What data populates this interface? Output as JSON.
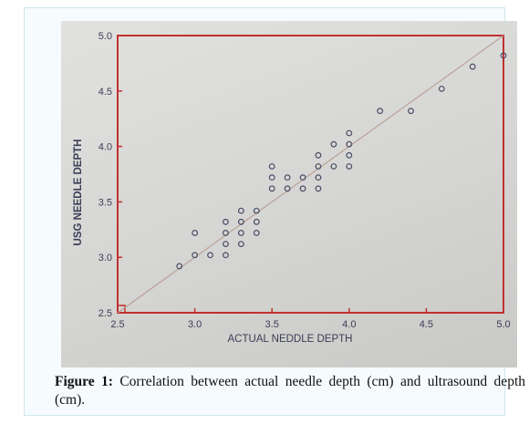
{
  "chart_data": {
    "type": "scatter",
    "xlabel": "ACTUAL NEDDLE DEPTH",
    "ylabel": "USG NEEDLE DEPTH",
    "xlim": [
      2.5,
      5.0
    ],
    "ylim": [
      2.5,
      5.0
    ],
    "x_ticks": [
      "2.5",
      "3.0",
      "3.5",
      "4.0",
      "4.5",
      "5.0"
    ],
    "y_ticks": [
      "2.5",
      "3.0",
      "3.5",
      "4.0",
      "4.5",
      "5.0"
    ],
    "x_tick_values": [
      2.5,
      3.0,
      3.5,
      4.0,
      4.5,
      5.0
    ],
    "y_tick_values": [
      2.5,
      3.0,
      3.5,
      4.0,
      4.5,
      5.0
    ],
    "points": [
      {
        "x": 2.9,
        "y": 2.92
      },
      {
        "x": 3.0,
        "y": 3.02
      },
      {
        "x": 3.0,
        "y": 3.22
      },
      {
        "x": 3.1,
        "y": 3.02
      },
      {
        "x": 3.2,
        "y": 3.02
      },
      {
        "x": 3.2,
        "y": 3.12
      },
      {
        "x": 3.2,
        "y": 3.22
      },
      {
        "x": 3.2,
        "y": 3.32
      },
      {
        "x": 3.3,
        "y": 3.12
      },
      {
        "x": 3.3,
        "y": 3.22
      },
      {
        "x": 3.3,
        "y": 3.32
      },
      {
        "x": 3.3,
        "y": 3.42
      },
      {
        "x": 3.4,
        "y": 3.22
      },
      {
        "x": 3.4,
        "y": 3.32
      },
      {
        "x": 3.4,
        "y": 3.42
      },
      {
        "x": 3.5,
        "y": 3.62
      },
      {
        "x": 3.5,
        "y": 3.72
      },
      {
        "x": 3.5,
        "y": 3.82
      },
      {
        "x": 3.6,
        "y": 3.62
      },
      {
        "x": 3.6,
        "y": 3.72
      },
      {
        "x": 3.7,
        "y": 3.62
      },
      {
        "x": 3.7,
        "y": 3.72
      },
      {
        "x": 3.8,
        "y": 3.62
      },
      {
        "x": 3.8,
        "y": 3.72
      },
      {
        "x": 3.8,
        "y": 3.82
      },
      {
        "x": 3.8,
        "y": 3.92
      },
      {
        "x": 3.9,
        "y": 3.82
      },
      {
        "x": 3.9,
        "y": 4.02
      },
      {
        "x": 4.0,
        "y": 3.82
      },
      {
        "x": 4.0,
        "y": 3.92
      },
      {
        "x": 4.0,
        "y": 4.02
      },
      {
        "x": 4.0,
        "y": 4.12
      },
      {
        "x": 4.2,
        "y": 4.32
      },
      {
        "x": 4.4,
        "y": 4.32
      },
      {
        "x": 4.6,
        "y": 4.52
      },
      {
        "x": 4.8,
        "y": 4.72
      },
      {
        "x": 5.0,
        "y": 4.82
      }
    ],
    "reference_line": {
      "from": [
        2.5,
        2.5
      ],
      "to": [
        5.0,
        5.0
      ]
    },
    "grid": false,
    "colors": {
      "axes": "#c0312f",
      "markers": "#4a4d66",
      "text": "#3a3d56",
      "reference_line": "#b89f94"
    }
  },
  "caption": {
    "label": "Figure 1:",
    "text": "Correlation between actual needle depth (cm) and ultrasound depth (cm)."
  }
}
